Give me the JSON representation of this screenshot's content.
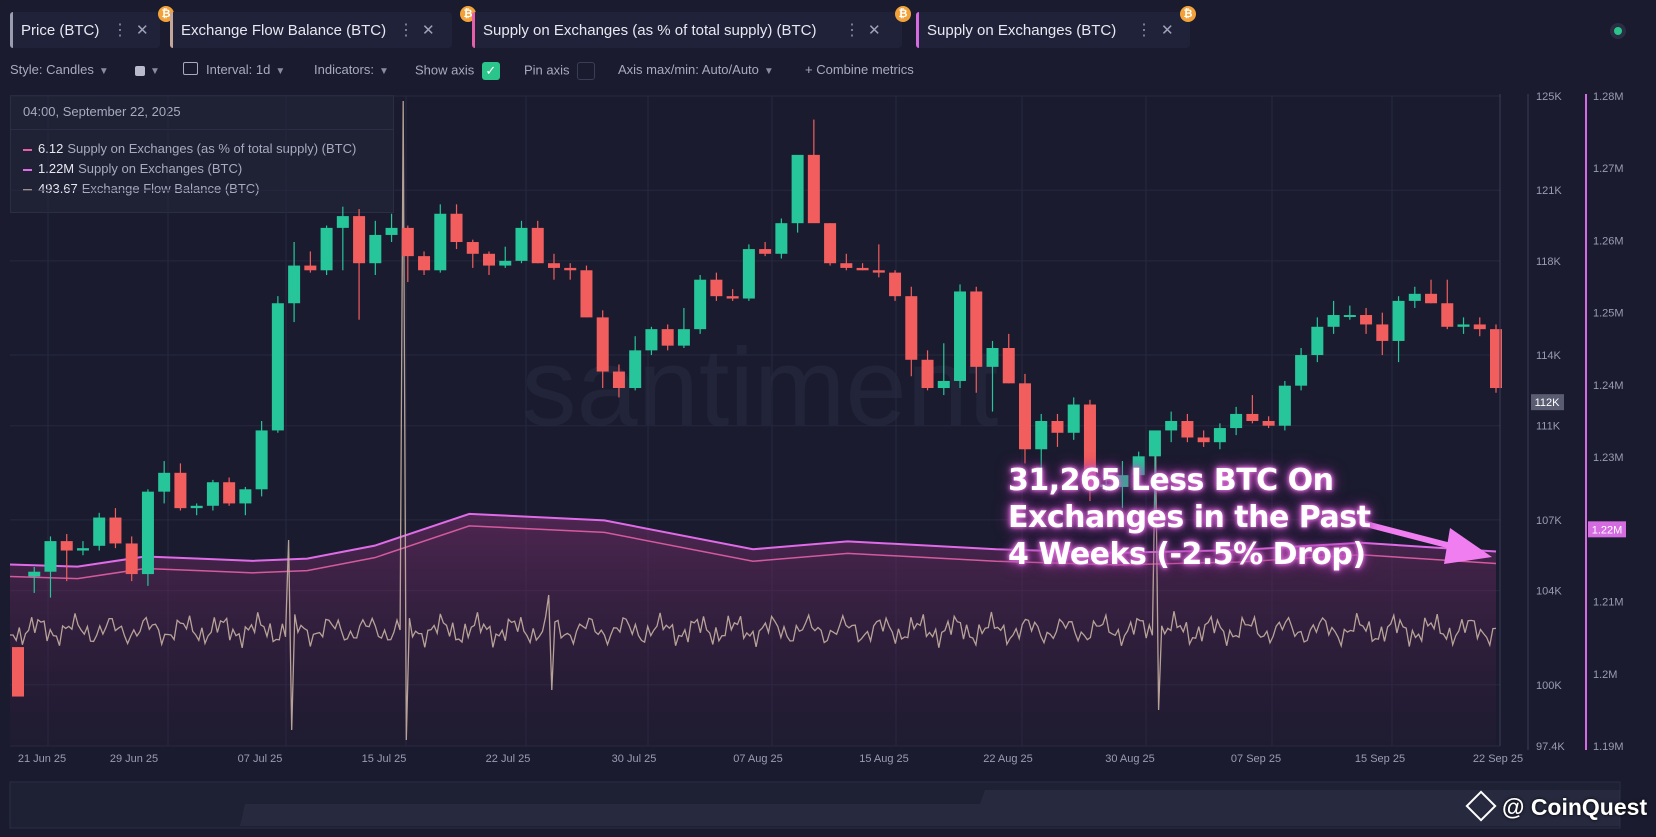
{
  "tabs": [
    {
      "label": "Price (BTC)",
      "accent": "#9a9cb0"
    },
    {
      "label": "Exchange Flow Balance (BTC)",
      "accent": "#c4a79a"
    },
    {
      "label": "Supply on Exchanges (as % of total supply) (BTC)",
      "accent": "#e45fa8"
    },
    {
      "label": "Supply on Exchanges (BTC)",
      "accent": "#d56be0"
    }
  ],
  "coin_glyph": "₿",
  "toolbar": {
    "style": "Style: Candles",
    "interval": "Interval: 1d",
    "indicators": "Indicators:",
    "show_axis": "Show axis",
    "pin_axis": "Pin axis",
    "axis_maxmin": "Axis max/min: Auto/Auto",
    "combine": "+ Combine metrics"
  },
  "legend": {
    "date": "04:00, September 22, 2025",
    "rows": [
      {
        "value": "6.12",
        "label": "Supply on Exchanges (as % of total supply) (BTC)",
        "color": "#e45fa8"
      },
      {
        "value": "1.22M",
        "label": "Supply on Exchanges (BTC)",
        "color": "#e06be8"
      },
      {
        "value": "493.67",
        "label": "Exchange Flow Balance (BTC)",
        "color": "#c8b0a2"
      }
    ]
  },
  "annotation": [
    "31,265 Less BTC On",
    "Exchanges in the Past",
    "4 Weeks (-2.5% Drop)"
  ],
  "watermark": "@ CoinQuest",
  "chart_data": {
    "type": "candlestick",
    "x_ticks": [
      "21 Jun 25",
      "29 Jun 25",
      "07 Jul 25",
      "15 Jul 25",
      "22 Jul 25",
      "30 Jul 25",
      "07 Aug 25",
      "15 Aug 25",
      "22 Aug 25",
      "30 Aug 25",
      "07 Sep 25",
      "15 Sep 25",
      "22 Sep 25"
    ],
    "price_axis": {
      "ticks": [
        "125K",
        "121K",
        "118K",
        "114K",
        "111K",
        "107K",
        "104K",
        "100K",
        "97.4K"
      ],
      "min": 97.4,
      "max": 125,
      "current_label": "112K",
      "unit": "K USD"
    },
    "supply_axis": {
      "ticks": [
        "1.28M",
        "1.27M",
        "1.26M",
        "1.25M",
        "1.24M",
        "1.23M",
        "1.22M",
        "1.21M",
        "1.2M",
        "1.19M"
      ],
      "min": 1.19,
      "max": 1.28,
      "current_label": "1.22M",
      "unit": "M BTC"
    },
    "price_candles": [
      [
        101.6,
        101.6,
        99.5,
        99.5
      ],
      [
        104.6,
        105.0,
        103.9,
        104.8
      ],
      [
        104.8,
        106.3,
        103.7,
        106.1
      ],
      [
        106.1,
        106.4,
        104.4,
        105.7
      ],
      [
        105.7,
        106.1,
        105.5,
        105.8
      ],
      [
        105.9,
        107.3,
        105.7,
        107.1
      ],
      [
        107.1,
        107.5,
        105.8,
        106.0
      ],
      [
        106.0,
        106.3,
        104.4,
        104.7
      ],
      [
        104.7,
        108.3,
        104.2,
        108.2
      ],
      [
        108.2,
        109.5,
        107.7,
        109.0
      ],
      [
        109.0,
        109.4,
        107.4,
        107.5
      ],
      [
        107.5,
        107.7,
        107.2,
        107.6
      ],
      [
        107.6,
        108.7,
        107.4,
        108.6
      ],
      [
        108.6,
        108.8,
        107.6,
        107.7
      ],
      [
        107.7,
        108.4,
        107.2,
        108.3
      ],
      [
        108.3,
        111.2,
        108.0,
        110.8
      ],
      [
        110.8,
        116.5,
        110.7,
        116.2
      ],
      [
        116.2,
        118.8,
        115.4,
        117.8
      ],
      [
        117.8,
        118.4,
        117.5,
        117.6
      ],
      [
        117.6,
        119.5,
        117.4,
        119.4
      ],
      [
        119.4,
        120.3,
        117.6,
        119.9
      ],
      [
        119.9,
        120.2,
        115.5,
        117.9
      ],
      [
        117.9,
        119.7,
        117.4,
        119.1
      ],
      [
        119.1,
        120.0,
        118.8,
        119.4
      ],
      [
        119.4,
        119.5,
        117.1,
        118.2
      ],
      [
        118.2,
        118.4,
        117.4,
        117.6
      ],
      [
        117.6,
        120.4,
        117.5,
        120.0
      ],
      [
        120.0,
        120.4,
        118.5,
        118.8
      ],
      [
        118.8,
        118.9,
        117.7,
        118.3
      ],
      [
        118.3,
        118.4,
        117.4,
        117.8
      ],
      [
        117.8,
        118.6,
        117.7,
        118.0
      ],
      [
        118.0,
        119.7,
        117.9,
        119.4
      ],
      [
        119.4,
        119.7,
        117.9,
        117.9
      ],
      [
        117.9,
        118.3,
        117.2,
        117.7
      ],
      [
        117.7,
        117.9,
        117.2,
        117.6
      ],
      [
        117.6,
        117.8,
        115.6,
        115.6
      ],
      [
        115.6,
        115.9,
        112.6,
        113.3
      ],
      [
        113.3,
        113.6,
        112.2,
        112.6
      ],
      [
        112.6,
        114.8,
        112.5,
        114.2
      ],
      [
        114.2,
        115.2,
        114.0,
        115.1
      ],
      [
        115.1,
        115.3,
        114.2,
        114.4
      ],
      [
        114.4,
        116.0,
        114.3,
        115.1
      ],
      [
        115.1,
        117.4,
        114.9,
        117.2
      ],
      [
        117.2,
        117.5,
        116.3,
        116.5
      ],
      [
        116.5,
        116.8,
        116.3,
        116.4
      ],
      [
        116.4,
        118.7,
        116.3,
        118.5
      ],
      [
        118.5,
        118.8,
        118.2,
        118.3
      ],
      [
        118.3,
        119.8,
        118.1,
        119.6
      ],
      [
        119.6,
        121.8,
        119.2,
        122.5
      ],
      [
        122.5,
        124.0,
        121.0,
        119.6
      ],
      [
        119.6,
        119.6,
        117.8,
        117.9
      ],
      [
        117.9,
        118.3,
        117.6,
        117.7
      ],
      [
        117.7,
        117.9,
        117.6,
        117.6
      ],
      [
        117.6,
        118.7,
        117.3,
        117.5
      ],
      [
        117.5,
        117.6,
        116.3,
        116.5
      ],
      [
        116.5,
        116.9,
        113.1,
        113.8
      ],
      [
        113.8,
        114.2,
        112.5,
        112.6
      ],
      [
        112.6,
        114.5,
        112.3,
        112.9
      ],
      [
        112.9,
        117.0,
        112.6,
        116.7
      ],
      [
        116.7,
        116.9,
        112.4,
        113.5
      ],
      [
        113.5,
        114.6,
        111.6,
        114.3
      ],
      [
        114.3,
        114.9,
        112.8,
        112.8
      ],
      [
        112.8,
        113.2,
        109.4,
        110.0
      ],
      [
        110.0,
        111.5,
        108.9,
        111.2
      ],
      [
        111.2,
        111.5,
        110.1,
        110.7
      ],
      [
        110.7,
        112.2,
        110.4,
        111.9
      ],
      [
        111.9,
        112.1,
        107.8,
        108.4
      ],
      [
        108.4,
        108.7,
        108.2,
        108.5
      ],
      [
        108.4,
        109.5,
        107.5,
        108.9
      ],
      [
        108.9,
        109.9,
        108.6,
        109.7
      ],
      [
        109.7,
        110.3,
        107.3,
        110.8
      ],
      [
        110.8,
        111.6,
        110.3,
        111.2
      ],
      [
        111.2,
        111.5,
        110.3,
        110.5
      ],
      [
        110.5,
        110.8,
        110.1,
        110.3
      ],
      [
        110.3,
        111.1,
        110.0,
        110.9
      ],
      [
        110.9,
        111.8,
        110.6,
        111.5
      ],
      [
        111.5,
        112.3,
        111.1,
        111.2
      ],
      [
        111.2,
        111.4,
        110.9,
        111.0
      ],
      [
        111.0,
        112.9,
        110.8,
        112.7
      ],
      [
        112.7,
        114.3,
        112.5,
        114.0
      ],
      [
        114.0,
        115.6,
        113.7,
        115.2
      ],
      [
        115.2,
        116.3,
        114.9,
        115.7
      ],
      [
        115.7,
        116.1,
        115.5,
        115.7
      ],
      [
        115.7,
        116.0,
        114.9,
        115.3
      ],
      [
        115.3,
        115.8,
        114.0,
        114.6
      ],
      [
        114.6,
        116.5,
        113.7,
        116.3
      ],
      [
        116.3,
        116.9,
        116.0,
        116.6
      ],
      [
        116.6,
        117.2,
        116.2,
        116.2
      ],
      [
        116.2,
        117.2,
        115.1,
        115.2
      ],
      [
        115.2,
        115.6,
        114.9,
        115.3
      ],
      [
        115.3,
        115.6,
        114.8,
        115.1
      ],
      [
        115.1,
        115.3,
        112.4,
        112.6
      ]
    ],
    "supply_btc_m": [
      1.2124,
      1.2124,
      1.2122,
      1.2122,
      1.2121,
      1.2121,
      1.2121,
      1.2121,
      1.2121,
      1.2121,
      1.212,
      1.2108,
      1.2108,
      1.2108,
      1.2106,
      1.2106,
      1.2113,
      1.2113,
      1.2118,
      1.2118,
      1.2116,
      1.2113,
      1.2113,
      1.2102,
      1.2102,
      1.2096,
      1.2096,
      1.209,
      1.209,
      1.209,
      1.209,
      1.209,
      1.209,
      1.209,
      1.209,
      1.209,
      1.209,
      1.209,
      1.209,
      1.209,
      1.209,
      1.209,
      1.209,
      1.209,
      1.209,
      1.209,
      1.209,
      1.209,
      1.209,
      1.209,
      1.209,
      1.209,
      1.209,
      1.209,
      1.209,
      1.209,
      1.209,
      1.209,
      1.209,
      1.209,
      1.209,
      1.209,
      1.209,
      1.209,
      1.209,
      1.209,
      1.209,
      1.209,
      1.209,
      1.209,
      1.209,
      1.209,
      1.209,
      1.209,
      1.209,
      1.209,
      1.209,
      1.209,
      1.209,
      1.209,
      1.209,
      1.209,
      1.209,
      1.209,
      1.209,
      1.209,
      1.209,
      1.209,
      1.209,
      1.209,
      1.209,
      1.209
    ],
    "supply_series_points": [
      [
        0,
        1.2096
      ],
      [
        5,
        1.2093
      ],
      [
        10,
        1.2107
      ],
      [
        14,
        1.2104
      ],
      [
        18,
        1.2101
      ],
      [
        22,
        1.2104
      ],
      [
        27,
        1.2122
      ],
      [
        34,
        1.2166
      ],
      [
        44,
        1.2157
      ],
      [
        55,
        1.2117
      ],
      [
        62,
        1.2128
      ],
      [
        73,
        1.2117
      ],
      [
        82,
        1.2112
      ],
      [
        91,
        1.2116
      ],
      [
        100,
        1.2126
      ],
      [
        110,
        1.2114
      ]
    ],
    "flow_balance": "noise around 0 with spikes at 15 Jul 25 and 30 Aug 25",
    "series": [
      {
        "name": "Price (BTC)"
      },
      {
        "name": "Exchange Flow Balance (BTC)"
      },
      {
        "name": "Supply on Exchanges (as % of total supply) (BTC)"
      },
      {
        "name": "Supply on Exchanges (BTC)"
      }
    ]
  },
  "bottom_logo": "santiment"
}
